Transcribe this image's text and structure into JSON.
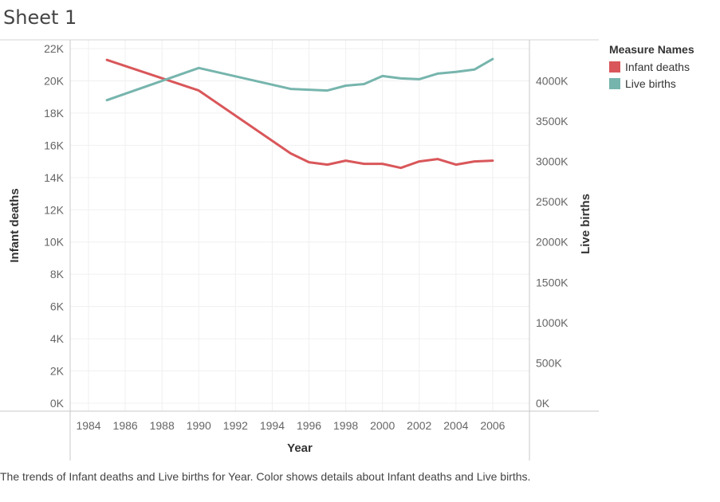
{
  "sheet_title": "Sheet 1",
  "caption": "The trends of Infant deaths and Live births for Year.  Color shows details about Infant deaths and Live births.",
  "legend": {
    "title": "Measure Names",
    "items": [
      {
        "label": "Infant deaths",
        "color": "#d9575a"
      },
      {
        "label": "Live births",
        "color": "#76b5ad"
      }
    ]
  },
  "chart_data": {
    "type": "line",
    "xlabel": "Year",
    "ylabel_left": "Infant deaths",
    "ylabel_right": "Live births",
    "xlim": [
      1983,
      2008
    ],
    "x_ticks": [
      1984,
      1986,
      1988,
      1990,
      1992,
      1994,
      1996,
      1998,
      2000,
      2002,
      2004,
      2006
    ],
    "x_tick_labels": [
      "1984",
      "1986",
      "1988",
      "1990",
      "1992",
      "1994",
      "1996",
      "1998",
      "2000",
      "2002",
      "2004",
      "2006"
    ],
    "ylim_left": [
      0,
      22000
    ],
    "y_ticks_left": [
      0,
      2000,
      4000,
      6000,
      8000,
      10000,
      12000,
      14000,
      16000,
      18000,
      20000,
      22000
    ],
    "y_tick_labels_left": [
      "0K",
      "2K",
      "4K",
      "6K",
      "8K",
      "10K",
      "12K",
      "14K",
      "16K",
      "18K",
      "20K",
      "22K"
    ],
    "ylim_right": [
      0,
      4400000
    ],
    "y_ticks_right": [
      0,
      500000,
      1000000,
      1500000,
      2000000,
      2500000,
      3000000,
      3500000,
      4000000
    ],
    "y_tick_labels_right": [
      "0K",
      "500K",
      "1000K",
      "1500K",
      "2000K",
      "2500K",
      "3000K",
      "3500K",
      "4000K"
    ],
    "grid": true,
    "series": [
      {
        "name": "Infant deaths",
        "axis": "left",
        "color": "#d9575a",
        "x": [
          1985,
          1990,
          1995,
          1996,
          1997,
          1998,
          1999,
          2000,
          2001,
          2002,
          2003,
          2004,
          2005,
          2006
        ],
        "values": [
          21300,
          19400,
          15500,
          14950,
          14800,
          15050,
          14850,
          14850,
          14600,
          15000,
          15150,
          14800,
          15000,
          15050
        ]
      },
      {
        "name": "Live births",
        "axis": "right",
        "color": "#76b5ad",
        "x": [
          1985,
          1990,
          1995,
          1996,
          1997,
          1998,
          1999,
          2000,
          2001,
          2002,
          2003,
          2004,
          2005,
          2006
        ],
        "values": [
          3760000,
          4160000,
          3900000,
          3890000,
          3880000,
          3940000,
          3960000,
          4060000,
          4030000,
          4020000,
          4090000,
          4110000,
          4140000,
          4270000
        ]
      }
    ]
  }
}
